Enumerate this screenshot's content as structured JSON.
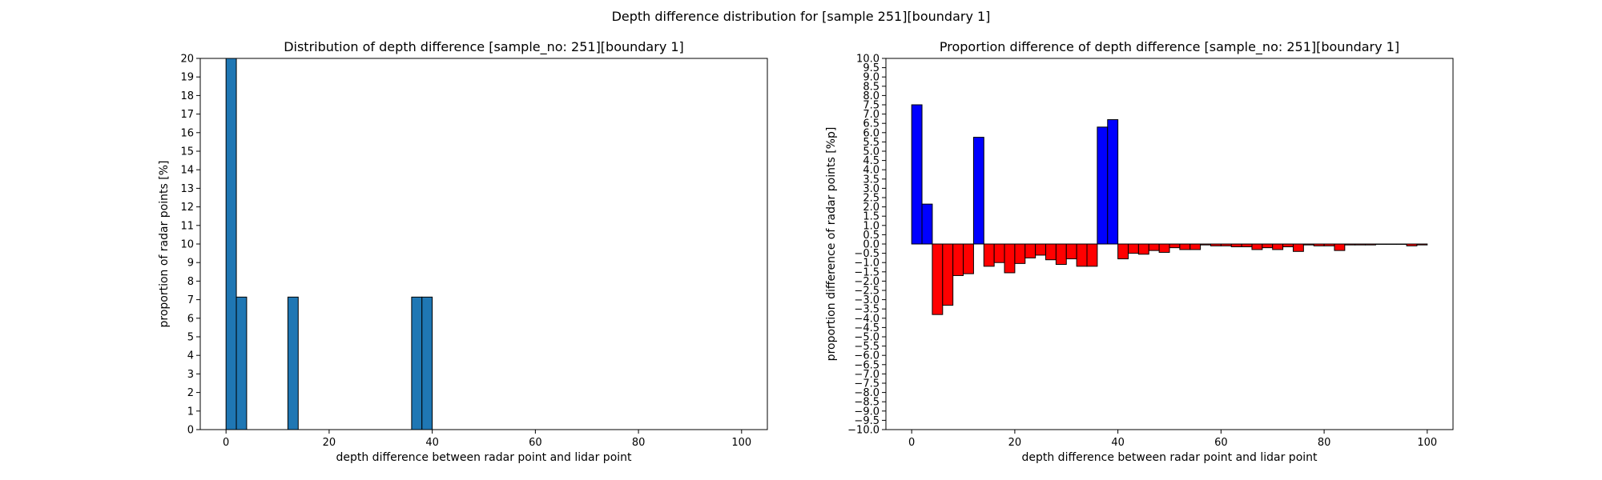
{
  "suptitle": "Depth difference distribution for [sample 251][boundary 1]",
  "chart_data": [
    {
      "type": "bar",
      "title": "Distribution of depth difference [sample_no: 251][boundary 1]",
      "xlabel": "depth difference between radar point and lidar point",
      "ylabel": "proportion of radar points [%]",
      "xlim": [
        -5,
        105
      ],
      "ylim": [
        0,
        20
      ],
      "xticks": [
        0,
        20,
        40,
        60,
        80,
        100
      ],
      "yticks": [
        0,
        1,
        2,
        3,
        4,
        5,
        6,
        7,
        8,
        9,
        10,
        11,
        12,
        13,
        14,
        15,
        16,
        17,
        18,
        19,
        20
      ],
      "bin_width": 2,
      "bar_color": "#1f77b4",
      "edge_color": "#000000",
      "bins": [
        {
          "x": 0,
          "value": 20
        },
        {
          "x": 2,
          "value": 7.14
        },
        {
          "x": 12,
          "value": 7.14
        },
        {
          "x": 36,
          "value": 7.14
        },
        {
          "x": 38,
          "value": 7.14
        }
      ]
    },
    {
      "type": "bar",
      "title": "Proportion difference of depth difference [sample_no: 251][boundary 1]",
      "xlabel": "depth difference between radar point and lidar point",
      "ylabel": "proportion difference of radar points [%p]",
      "xlim": [
        -5,
        105
      ],
      "ylim": [
        -10,
        10
      ],
      "xticks": [
        0,
        20,
        40,
        60,
        80,
        100
      ],
      "ytick_step": 0.5,
      "bin_width": 2,
      "positive_color": "#0000ff",
      "negative_color": "#ff0000",
      "edge_color": "#000000",
      "bins": [
        {
          "x": 0,
          "value": 7.5
        },
        {
          "x": 2,
          "value": 2.15
        },
        {
          "x": 4,
          "value": -3.8
        },
        {
          "x": 6,
          "value": -3.3
        },
        {
          "x": 8,
          "value": -1.7
        },
        {
          "x": 10,
          "value": -1.6
        },
        {
          "x": 12,
          "value": 5.75
        },
        {
          "x": 14,
          "value": -1.2
        },
        {
          "x": 16,
          "value": -1.0
        },
        {
          "x": 18,
          "value": -1.55
        },
        {
          "x": 20,
          "value": -1.05
        },
        {
          "x": 22,
          "value": -0.75
        },
        {
          "x": 24,
          "value": -0.6
        },
        {
          "x": 26,
          "value": -0.85
        },
        {
          "x": 28,
          "value": -1.1
        },
        {
          "x": 30,
          "value": -0.8
        },
        {
          "x": 32,
          "value": -1.2
        },
        {
          "x": 34,
          "value": -1.2
        },
        {
          "x": 36,
          "value": 6.3
        },
        {
          "x": 38,
          "value": 6.7
        },
        {
          "x": 40,
          "value": -0.8
        },
        {
          "x": 42,
          "value": -0.5
        },
        {
          "x": 44,
          "value": -0.55
        },
        {
          "x": 46,
          "value": -0.35
        },
        {
          "x": 48,
          "value": -0.45
        },
        {
          "x": 50,
          "value": -0.2
        },
        {
          "x": 52,
          "value": -0.3
        },
        {
          "x": 54,
          "value": -0.3
        },
        {
          "x": 56,
          "value": -0.05
        },
        {
          "x": 58,
          "value": -0.1
        },
        {
          "x": 60,
          "value": -0.1
        },
        {
          "x": 62,
          "value": -0.15
        },
        {
          "x": 64,
          "value": -0.15
        },
        {
          "x": 66,
          "value": -0.3
        },
        {
          "x": 68,
          "value": -0.2
        },
        {
          "x": 70,
          "value": -0.3
        },
        {
          "x": 72,
          "value": -0.15
        },
        {
          "x": 74,
          "value": -0.4
        },
        {
          "x": 76,
          "value": -0.05
        },
        {
          "x": 78,
          "value": -0.1
        },
        {
          "x": 80,
          "value": -0.1
        },
        {
          "x": 82,
          "value": -0.35
        },
        {
          "x": 84,
          "value": -0.05
        },
        {
          "x": 86,
          "value": -0.05
        },
        {
          "x": 88,
          "value": -0.05
        },
        {
          "x": 90,
          "value": -0.02
        },
        {
          "x": 92,
          "value": -0.02
        },
        {
          "x": 94,
          "value": -0.02
        },
        {
          "x": 96,
          "value": -0.1
        },
        {
          "x": 98,
          "value": -0.05
        }
      ]
    }
  ]
}
